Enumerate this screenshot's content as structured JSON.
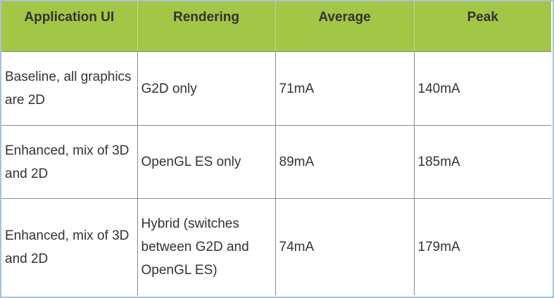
{
  "table": {
    "headers": [
      "Application UI",
      "Rendering",
      "Average",
      "Peak"
    ],
    "rows": [
      [
        "Baseline, all graphics are 2D",
        "G2D only",
        "71mA",
        "140mA"
      ],
      [
        "Enhanced, mix of 3D and 2D",
        "OpenGL ES only",
        "89mA",
        "185mA"
      ],
      [
        "Enhanced, mix of 3D and 2D",
        "Hybrid (switches between G2D and OpenGL ES)",
        "74mA",
        "179mA"
      ]
    ]
  },
  "colors": {
    "header_background": "#a2c645",
    "frame_border": "#a9c3d6",
    "grid_lines": "#8a8a8a",
    "text": "#333333"
  }
}
